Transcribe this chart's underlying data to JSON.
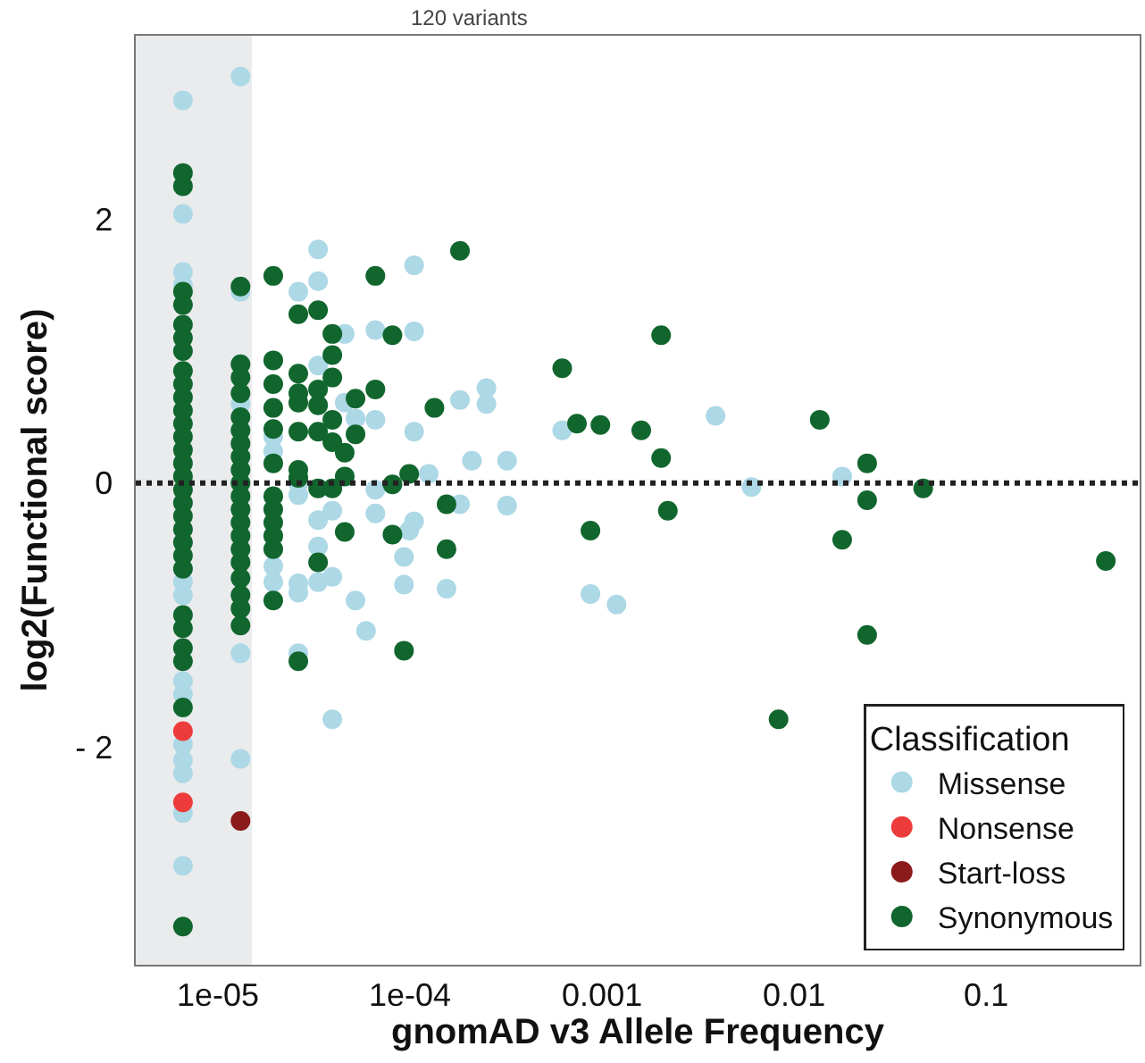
{
  "chart_data": {
    "type": "scatter",
    "xlabel": "gnomAD v3 Allele Frequency",
    "ylabel": "log2(Functional score)",
    "legend_title": "Classification",
    "legend": "bottom right",
    "grid": false,
    "marker": "circle",
    "log": "x",
    "annotations": [
      "120 variants"
    ],
    "xlim": [
      3.73e-06,
      0.63
    ],
    "xticks": [
      {
        "value": 1e-05,
        "label": "1e-05"
      },
      {
        "value": 0.0001,
        "label": "1e-04"
      },
      0.001,
      0.01,
      0.1
    ],
    "ylim": [
      -3.65,
      3.39
    ],
    "yticks": [
      {
        "value": -2,
        "label": "- 2"
      },
      0,
      2
    ],
    "ref_lines": [
      {
        "axis": "y",
        "value": 0,
        "label": null,
        "color": "#222222",
        "line_style": "dotted"
      }
    ],
    "bands": [
      {
        "axis": "x",
        "from": 3.73e-06,
        "to": 1.5e-05,
        "label": null,
        "color": "#e9ebed"
      }
    ],
    "series": [
      {
        "name": "Missense",
        "color": "#add8e6",
        "x": [
          6.57e-06,
          6.57e-06,
          6.57e-06,
          6.57e-06,
          6.57e-06,
          6.57e-06,
          6.57e-06,
          6.57e-06,
          6.57e-06,
          6.57e-06,
          6.57e-06,
          6.57e-06,
          6.57e-06,
          1.31e-05,
          1.31e-05,
          1.31e-05,
          1.31e-05,
          1.31e-05,
          1.94e-05,
          1.94e-05,
          1.94e-05,
          1.94e-05,
          2.62e-05,
          2.62e-05,
          2.62e-05,
          2.62e-05,
          2.62e-05,
          2.62e-05,
          3.32e-05,
          3.32e-05,
          3.32e-05,
          3.32e-05,
          3.32e-05,
          3.32e-05,
          3.94e-05,
          3.94e-05,
          3.94e-05,
          4.57e-05,
          4.57e-05,
          5.2e-05,
          5.2e-05,
          5.9e-05,
          6.6e-05,
          6.6e-05,
          6.6e-05,
          6.6e-05,
          9.3e-05,
          9.3e-05,
          9.9e-05,
          0.000105,
          0.000105,
          0.000105,
          0.000105,
          0.000125,
          0.000155,
          0.000182,
          0.000182,
          0.00021,
          0.00025,
          0.00025,
          0.00032,
          0.00032,
          0.00062,
          0.00087,
          0.00119,
          0.0039,
          0.006,
          0.0178
        ],
        "values": [
          2.9,
          2.04,
          1.6,
          1.5,
          -0.75,
          -0.85,
          -1.5,
          -1.6,
          -1.98,
          -2.1,
          -2.2,
          -2.5,
          -2.9,
          3.08,
          1.45,
          0.6,
          -1.29,
          -2.09,
          0.24,
          0.35,
          -0.63,
          -0.75,
          1.45,
          0.0,
          -0.09,
          -0.76,
          -0.83,
          -1.29,
          1.77,
          1.53,
          0.89,
          -0.28,
          -0.48,
          -0.75,
          -0.21,
          -0.71,
          -1.79,
          1.13,
          0.61,
          0.49,
          -0.89,
          -1.12,
          1.16,
          0.48,
          -0.05,
          -0.23,
          -0.56,
          -0.77,
          -0.36,
          1.65,
          1.15,
          0.39,
          -0.29,
          0.07,
          -0.8,
          0.63,
          -0.16,
          0.17,
          0.72,
          0.6,
          0.17,
          -0.17,
          0.4,
          -0.84,
          -0.92,
          0.51,
          -0.03,
          0.05
        ]
      },
      {
        "name": "Nonsense",
        "color": "#ee3b3b",
        "x": [
          6.57e-06,
          6.57e-06
        ],
        "values": [
          -1.88,
          -2.42
        ]
      },
      {
        "name": "Start-loss",
        "color": "#8b1a1a",
        "x": [
          1.31e-05
        ],
        "values": [
          -2.56
        ]
      },
      {
        "name": "Synonymous",
        "color": "#11662e",
        "x": [
          6.57e-06,
          6.57e-06,
          6.57e-06,
          6.57e-06,
          6.57e-06,
          6.57e-06,
          6.57e-06,
          6.57e-06,
          6.57e-06,
          6.57e-06,
          6.57e-06,
          6.57e-06,
          6.57e-06,
          6.57e-06,
          6.57e-06,
          6.57e-06,
          6.57e-06,
          6.57e-06,
          6.57e-06,
          6.57e-06,
          6.57e-06,
          6.57e-06,
          6.57e-06,
          6.57e-06,
          6.57e-06,
          6.57e-06,
          6.57e-06,
          6.57e-06,
          6.57e-06,
          1.31e-05,
          1.31e-05,
          1.31e-05,
          1.31e-05,
          1.31e-05,
          1.31e-05,
          1.31e-05,
          1.31e-05,
          1.31e-05,
          1.31e-05,
          1.31e-05,
          1.31e-05,
          1.31e-05,
          1.31e-05,
          1.31e-05,
          1.31e-05,
          1.31e-05,
          1.31e-05,
          1.31e-05,
          1.31e-05,
          1.94e-05,
          1.94e-05,
          1.94e-05,
          1.94e-05,
          1.94e-05,
          1.94e-05,
          1.94e-05,
          1.94e-05,
          1.94e-05,
          1.94e-05,
          1.94e-05,
          1.94e-05,
          2.62e-05,
          2.62e-05,
          2.62e-05,
          2.62e-05,
          2.62e-05,
          2.62e-05,
          2.62e-05,
          2.62e-05,
          3.32e-05,
          3.32e-05,
          3.32e-05,
          3.32e-05,
          3.32e-05,
          3.32e-05,
          3.94e-05,
          3.94e-05,
          3.94e-05,
          3.94e-05,
          3.94e-05,
          3.94e-05,
          4.57e-05,
          4.57e-05,
          4.57e-05,
          5.2e-05,
          5.2e-05,
          6.6e-05,
          6.6e-05,
          8.1e-05,
          8.1e-05,
          8.1e-05,
          9.3e-05,
          9.9e-05,
          0.000134,
          0.000155,
          0.000155,
          0.000182,
          0.00062,
          0.00074,
          0.00087,
          0.00098,
          0.0016,
          0.00203,
          0.00203,
          0.0022,
          0.0083,
          0.0136,
          0.0178,
          0.024,
          0.024,
          0.024,
          0.047,
          0.42
        ],
        "values": [
          2.35,
          2.25,
          1.45,
          1.35,
          1.2,
          1.1,
          1.0,
          0.85,
          0.75,
          0.65,
          0.55,
          0.45,
          0.35,
          0.25,
          0.15,
          0.05,
          -0.05,
          -0.15,
          -0.25,
          -0.35,
          -0.45,
          -0.55,
          -0.65,
          -1.0,
          -1.1,
          -1.25,
          -1.35,
          -1.7,
          -3.36,
          1.49,
          0.9,
          0.8,
          0.68,
          0.5,
          0.4,
          0.3,
          0.2,
          0.1,
          0.0,
          -0.1,
          -0.2,
          -0.3,
          -0.4,
          -0.5,
          -0.6,
          -0.72,
          -0.85,
          -0.95,
          -1.08,
          1.57,
          0.93,
          0.75,
          0.57,
          0.41,
          0.15,
          -0.1,
          -0.2,
          -0.3,
          -0.4,
          -0.5,
          -0.89,
          1.28,
          0.83,
          0.68,
          0.61,
          0.39,
          0.1,
          0.04,
          -1.35,
          1.31,
          0.71,
          0.59,
          0.39,
          -0.04,
          -0.6,
          1.13,
          0.97,
          0.8,
          0.48,
          0.31,
          -0.04,
          0.23,
          0.05,
          -0.37,
          0.64,
          0.37,
          1.57,
          0.71,
          1.12,
          -0.01,
          -0.39,
          -1.27,
          0.07,
          0.57,
          -0.5,
          -0.16,
          1.76,
          0.87,
          0.45,
          -0.36,
          0.44,
          0.4,
          1.12,
          0.19,
          -0.21,
          -1.79,
          0.48,
          -0.43,
          0.15,
          -0.13,
          -1.15,
          -0.04,
          -0.59
        ]
      }
    ]
  }
}
